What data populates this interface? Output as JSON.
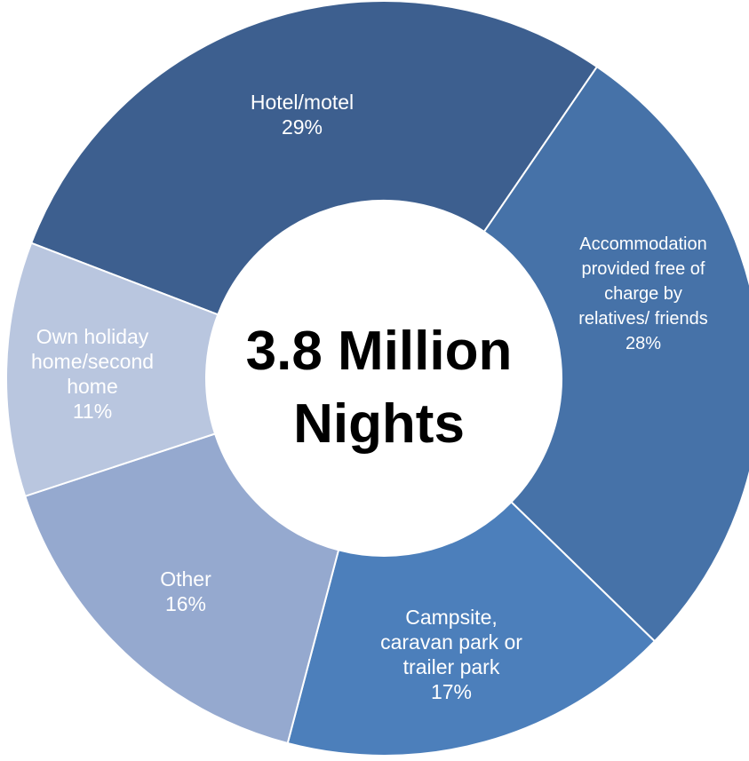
{
  "chart_data": {
    "type": "pie",
    "variant": "donut",
    "center_label": [
      "3.8 Million",
      "Nights"
    ],
    "slices": [
      {
        "label": [
          "Hotel/motel"
        ],
        "value": 29,
        "display": "29%",
        "color": "#3d5f8f"
      },
      {
        "label": [
          "Accommodation",
          "provided free of",
          "charge by",
          "relatives/ friends"
        ],
        "value": 28,
        "display": "28%",
        "color": "#4672a8"
      },
      {
        "label": [
          "Campsite,",
          "caravan park or",
          "trailer park"
        ],
        "value": 17,
        "display": "17%",
        "color": "#4c7fbb"
      },
      {
        "label": [
          "Other"
        ],
        "value": 16,
        "display": "16%",
        "color": "#95a9cf"
      },
      {
        "label": [
          "Own holiday",
          "home/second",
          "home"
        ],
        "value": 11,
        "display": "11%",
        "color": "#b9c6df"
      }
    ]
  }
}
